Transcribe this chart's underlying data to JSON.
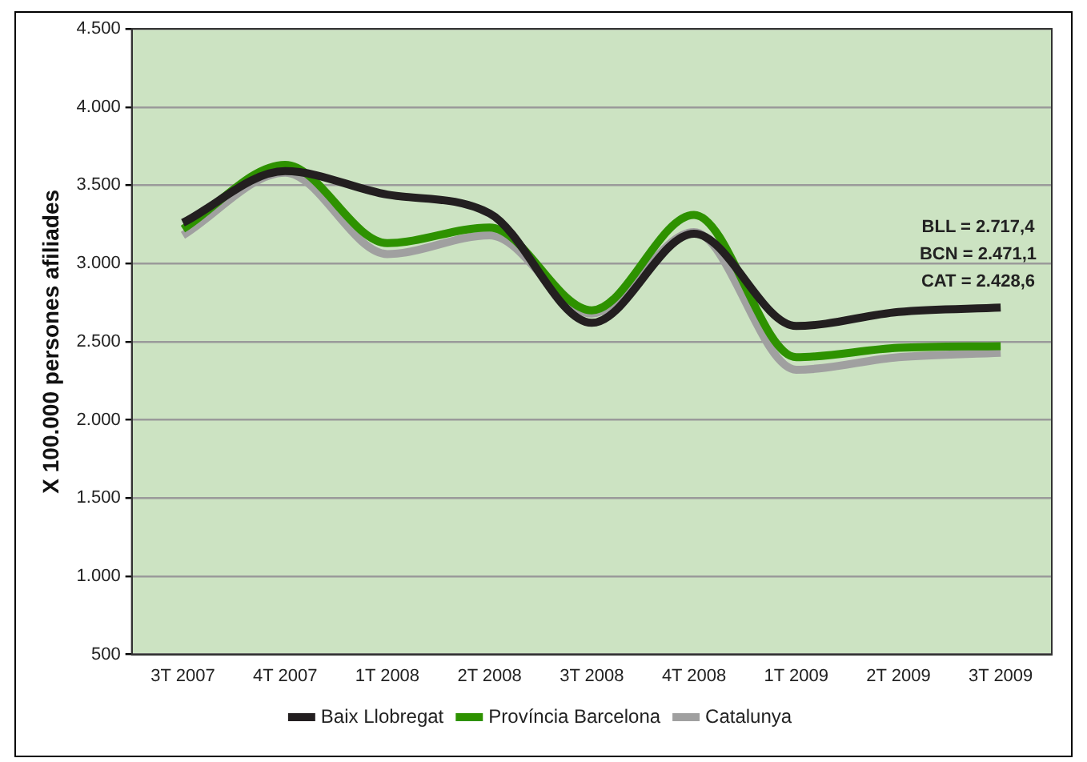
{
  "chart_data": {
    "type": "line",
    "ylabel": "X 100.000 persones afiliades",
    "categories": [
      "3T 2007",
      "4T 2007",
      "1T 2008",
      "2T 2008",
      "3T 2008",
      "4T 2008",
      "1T 2009",
      "2T 2009",
      "3T 2009"
    ],
    "series": [
      {
        "name": "Baix Llobregat",
        "color": "#231f20",
        "values": [
          3260,
          3590,
          3440,
          3320,
          2620,
          3190,
          2600,
          2690,
          2717.4
        ]
      },
      {
        "name": "Província Barcelona",
        "color": "#2e9200",
        "values": [
          3220,
          3630,
          3130,
          3230,
          2700,
          3310,
          2400,
          2460,
          2471.1
        ]
      },
      {
        "name": "Catalunya",
        "color": "#a0a0a0",
        "values": [
          3180,
          3580,
          3060,
          3180,
          2680,
          3200,
          2320,
          2400,
          2428.6
        ]
      }
    ],
    "ylim": [
      500,
      4500
    ],
    "yticks": [
      {
        "value": 500,
        "label": "500"
      },
      {
        "value": 1000,
        "label": "1.000"
      },
      {
        "value": 1500,
        "label": "1.500"
      },
      {
        "value": 2000,
        "label": "2.000"
      },
      {
        "value": 2500,
        "label": "2.500"
      },
      {
        "value": 3000,
        "label": "3.000"
      },
      {
        "value": 3500,
        "label": "3.500"
      },
      {
        "value": 4000,
        "label": "4.000"
      },
      {
        "value": 4500,
        "label": "4.500"
      }
    ],
    "annotations": [
      "BLL = 2.717,4",
      "BCN = 2.471,1",
      "CAT = 2.428,6"
    ],
    "grid": "y",
    "legend": "bottom",
    "marker": "none",
    "line_style": "solid"
  }
}
